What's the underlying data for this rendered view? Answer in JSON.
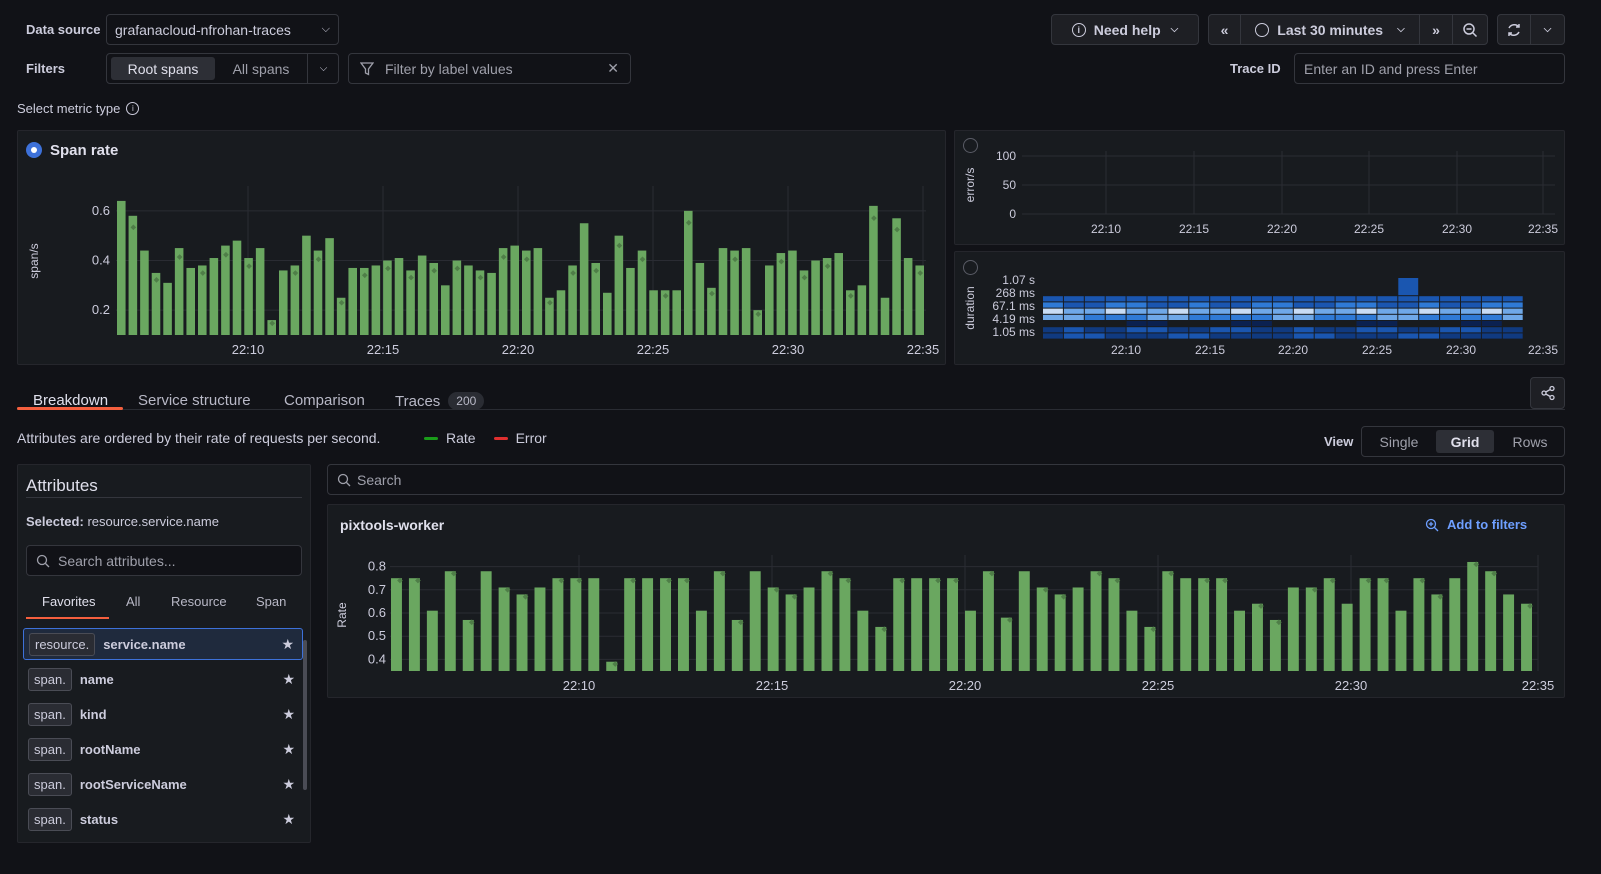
{
  "header": {
    "datasource_label": "Data source",
    "datasource_value": "grafanacloud-nfrohan-traces",
    "filters_label": "Filters",
    "span_toggle": [
      "Root spans",
      "All spans"
    ],
    "filter_placeholder": "Filter by label values",
    "need_help": "Need help",
    "time_range": "Last 30 minutes",
    "trace_id_label": "Trace ID",
    "trace_id_placeholder": "Enter an ID and press Enter"
  },
  "metric_type": {
    "label": "Select metric type",
    "span_rate_title": "Span rate"
  },
  "span_rate_chart": {
    "ylabel": "span/s",
    "yticks": [
      "0.6",
      "0.4",
      "0.2"
    ],
    "xticks": [
      "22:10",
      "22:15",
      "22:20",
      "22:25",
      "22:30",
      "22:35"
    ],
    "bar_color": "#6aa760"
  },
  "error_chart": {
    "ylabel": "error/s",
    "yticks": [
      "100",
      "50",
      "0"
    ],
    "xticks": [
      "22:10",
      "22:15",
      "22:20",
      "22:25",
      "22:30",
      "22:35"
    ]
  },
  "duration_chart": {
    "ylabel": "duration",
    "yticks": [
      "1.07 s",
      "268 ms",
      "67.1 ms",
      "4.19 ms",
      "1.05 ms"
    ],
    "xticks": [
      "22:10",
      "22:15",
      "22:20",
      "22:25",
      "22:30",
      "22:35"
    ]
  },
  "tabs": [
    {
      "label": "Breakdown",
      "active": true
    },
    {
      "label": "Service structure"
    },
    {
      "label": "Comparison"
    },
    {
      "label": "Traces",
      "badge": "200"
    }
  ],
  "breakdown": {
    "description": "Attributes are ordered by their rate of requests per second.",
    "legend": [
      {
        "label": "Rate",
        "color": "#1a9c1a"
      },
      {
        "label": "Error",
        "color": "#e02f2f"
      }
    ],
    "view_label": "View",
    "view_options": [
      "Single",
      "Grid",
      "Rows"
    ],
    "view_selected": "Grid",
    "search_placeholder": "Search"
  },
  "attributes": {
    "title": "Attributes",
    "selected_prefix": "Selected:",
    "selected_value": "resource.service.name",
    "search_placeholder": "Search attributes...",
    "filter_tabs": [
      "Favorites",
      "All",
      "Resource",
      "Span"
    ],
    "items": [
      {
        "scope": "resource.",
        "name": "service.name",
        "selected": true
      },
      {
        "scope": "span.",
        "name": "name"
      },
      {
        "scope": "span.",
        "name": "kind"
      },
      {
        "scope": "span.",
        "name": "rootName"
      },
      {
        "scope": "span.",
        "name": "rootServiceName"
      },
      {
        "scope": "span.",
        "name": "status"
      }
    ]
  },
  "service_panel": {
    "title": "pixtools-worker",
    "add_to_filters": "Add to filters",
    "ylabel": "Rate",
    "yticks": [
      "0.8",
      "0.7",
      "0.6",
      "0.5",
      "0.4"
    ],
    "xticks": [
      "22:10",
      "22:15",
      "22:20",
      "22:25",
      "22:30",
      "22:35"
    ]
  },
  "chart_data": [
    {
      "type": "bar",
      "title": "Span rate",
      "ylabel": "span/s",
      "ylim": [
        0.1,
        0.7
      ],
      "x_start": "22:05",
      "x_end": "22:35",
      "values": [
        0.64,
        0.58,
        0.44,
        0.35,
        0.31,
        0.45,
        0.37,
        0.38,
        0.41,
        0.46,
        0.48,
        0.41,
        0.45,
        0.16,
        0.36,
        0.38,
        0.5,
        0.44,
        0.49,
        0.25,
        0.37,
        0.37,
        0.38,
        0.4,
        0.41,
        0.36,
        0.42,
        0.39,
        0.3,
        0.4,
        0.38,
        0.36,
        0.35,
        0.45,
        0.46,
        0.44,
        0.45,
        0.25,
        0.28,
        0.38,
        0.55,
        0.39,
        0.27,
        0.5,
        0.37,
        0.44,
        0.28,
        0.28,
        0.28,
        0.6,
        0.39,
        0.29,
        0.45,
        0.44,
        0.45,
        0.2,
        0.38,
        0.43,
        0.44,
        0.36,
        0.4,
        0.41,
        0.43,
        0.28,
        0.3,
        0.62,
        0.25,
        0.57,
        0.41,
        0.38
      ]
    },
    {
      "type": "bar",
      "title": "pixtools-worker",
      "ylabel": "Rate",
      "ylim": [
        0.35,
        0.85
      ],
      "x_start": "22:06",
      "x_end": "22:35",
      "values": [
        0.75,
        0.75,
        0.61,
        0.78,
        0.57,
        0.78,
        0.71,
        0.68,
        0.71,
        0.75,
        0.75,
        0.75,
        0.39,
        0.75,
        0.75,
        0.75,
        0.75,
        0.61,
        0.78,
        0.57,
        0.78,
        0.71,
        0.68,
        0.71,
        0.78,
        0.75,
        0.61,
        0.54,
        0.75,
        0.75,
        0.75,
        0.75,
        0.61,
        0.78,
        0.58,
        0.78,
        0.71,
        0.68,
        0.71,
        0.78,
        0.75,
        0.61,
        0.54,
        0.78,
        0.75,
        0.75,
        0.75,
        0.61,
        0.64,
        0.57,
        0.71,
        0.71,
        0.75,
        0.64,
        0.75,
        0.75,
        0.61,
        0.75,
        0.68,
        0.75,
        0.82,
        0.78,
        0.68,
        0.64
      ]
    }
  ]
}
